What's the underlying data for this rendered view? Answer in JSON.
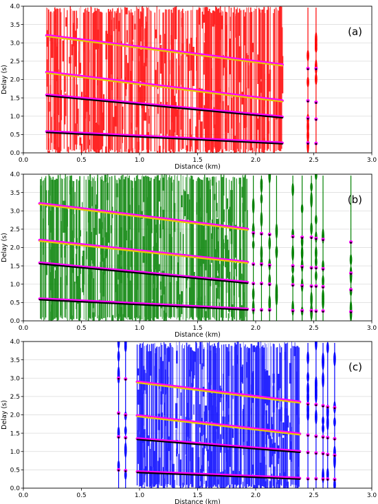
{
  "chart_data": [
    {
      "type": "scatter",
      "panel_label": "(a)",
      "xlabel": "Distance (km)",
      "ylabel": "Delay (s)",
      "xlim": [
        0.0,
        3.0
      ],
      "ylim": [
        0.0,
        4.0
      ],
      "xticks": [
        "0.0",
        "0.5",
        "1.0",
        "1.5",
        "2.0",
        "2.5",
        "3.0"
      ],
      "yticks": [
        "0.0",
        "0.5",
        "1.0",
        "1.5",
        "2.0",
        "2.5",
        "3.0",
        "3.5",
        "4.0"
      ],
      "grid": true,
      "trace_color": "#ff0000",
      "trace_span_km": [
        0.2,
        2.23
      ],
      "isolated_traces_km": [
        2.45,
        2.52
      ],
      "picks": [
        {
          "x": [
            0.2,
            2.23
          ],
          "y": [
            0.58,
            0.27
          ],
          "color": "#000000",
          "highlight": "#ff00ff"
        },
        {
          "x": [
            0.2,
            2.23
          ],
          "y": [
            1.58,
            0.98
          ],
          "color": "#000000",
          "highlight": "#ff00ff"
        },
        {
          "x": [
            0.2,
            2.23
          ],
          "y": [
            2.2,
            1.42
          ],
          "color": "#e8c800",
          "highlight": "#ff00ff"
        },
        {
          "x": [
            0.2,
            2.23
          ],
          "y": [
            3.2,
            2.4
          ],
          "color": "#e8c800",
          "highlight": "#ff00ff"
        }
      ],
      "isolated_picks": [
        {
          "x": 2.45,
          "y": [
            0.27,
            0.95,
            1.42,
            2.3
          ]
        },
        {
          "x": 2.52,
          "y": [
            0.26,
            0.92,
            1.38,
            2.3
          ]
        }
      ]
    },
    {
      "type": "scatter",
      "panel_label": "(b)",
      "xlabel": "Distance (km)",
      "ylabel": "Delay (s)",
      "xlim": [
        0.0,
        3.0
      ],
      "ylim": [
        0.0,
        4.0
      ],
      "xticks": [
        "0.0",
        "0.5",
        "1.0",
        "1.5",
        "2.0",
        "2.5",
        "3.0"
      ],
      "yticks": [
        "0.0",
        "0.5",
        "1.0",
        "1.5",
        "2.0",
        "2.5",
        "3.0",
        "3.5",
        "4.0"
      ],
      "grid": true,
      "trace_color": "#008000",
      "trace_span_km": [
        0.14,
        1.93
      ],
      "isolated_traces_km": [
        1.98,
        2.05,
        2.12,
        2.18,
        2.32,
        2.4,
        2.48,
        2.52,
        2.58,
        2.82
      ],
      "picks": [
        {
          "x": [
            0.14,
            1.93
          ],
          "y": [
            0.6,
            0.32
          ],
          "color": "#000000",
          "highlight": "#ff00ff"
        },
        {
          "x": [
            0.14,
            1.93
          ],
          "y": [
            1.58,
            1.05
          ],
          "color": "#000000",
          "highlight": "#ff00ff"
        },
        {
          "x": [
            0.14,
            1.93
          ],
          "y": [
            2.2,
            1.6
          ],
          "color": "#e8c800",
          "highlight": "#ff00ff"
        },
        {
          "x": [
            0.14,
            1.93
          ],
          "y": [
            3.2,
            2.5
          ],
          "color": "#e8c800",
          "highlight": "#ff00ff"
        }
      ],
      "isolated_picks": [
        {
          "x": 1.98,
          "y": [
            0.3,
            1.02,
            1.55,
            2.4
          ]
        },
        {
          "x": 2.05,
          "y": [
            0.3,
            1.02,
            1.55,
            2.38
          ]
        },
        {
          "x": 2.12,
          "y": [
            0.3,
            1.0,
            1.52,
            2.36
          ]
        },
        {
          "x": 2.32,
          "y": [
            0.28,
            0.98,
            1.5,
            2.3
          ]
        },
        {
          "x": 2.4,
          "y": [
            0.28,
            0.96,
            1.48,
            2.28
          ]
        },
        {
          "x": 2.48,
          "y": [
            0.28,
            0.95,
            1.45,
            2.28
          ]
        },
        {
          "x": 2.52,
          "y": [
            0.27,
            0.95,
            1.45,
            2.25
          ]
        },
        {
          "x": 2.58,
          "y": [
            0.27,
            0.93,
            1.42,
            2.22
          ]
        },
        {
          "x": 2.82,
          "y": [
            0.25,
            0.85,
            1.3,
            2.15
          ]
        }
      ]
    },
    {
      "type": "scatter",
      "panel_label": "(c)",
      "xlabel": "Distance (km)",
      "ylabel": "Delay (s)",
      "xlim": [
        0.0,
        3.0
      ],
      "ylim": [
        0.0,
        4.0
      ],
      "xticks": [
        "0.0",
        "0.5",
        "1.0",
        "1.5",
        "2.0",
        "2.5",
        "3.0"
      ],
      "yticks": [
        "0.0",
        "0.5",
        "1.0",
        "1.5",
        "2.0",
        "2.5",
        "3.0",
        "3.5",
        "4.0"
      ],
      "grid": true,
      "trace_color": "#0000ff",
      "trace_span_km": [
        0.98,
        2.38
      ],
      "isolated_traces_km": [
        0.82,
        0.88,
        2.45,
        2.52,
        2.58,
        2.62,
        2.68
      ],
      "picks": [
        {
          "x": [
            0.98,
            2.38
          ],
          "y": [
            0.45,
            0.27
          ],
          "color": "#000000",
          "highlight": "#ff00ff"
        },
        {
          "x": [
            0.98,
            2.38
          ],
          "y": [
            1.35,
            1.0
          ],
          "color": "#000000",
          "highlight": "#ff00ff"
        },
        {
          "x": [
            0.98,
            2.38
          ],
          "y": [
            1.98,
            1.48
          ],
          "color": "#e8c800",
          "highlight": "#ff00ff"
        },
        {
          "x": [
            0.98,
            2.38
          ],
          "y": [
            2.9,
            2.35
          ],
          "color": "#e8c800",
          "highlight": "#ff00ff"
        }
      ],
      "isolated_picks": [
        {
          "x": 0.82,
          "y": [
            0.5,
            1.4,
            2.05,
            3.0
          ]
        },
        {
          "x": 0.88,
          "y": [
            0.48,
            1.38,
            2.0,
            2.98
          ]
        },
        {
          "x": 2.45,
          "y": [
            0.26,
            0.98,
            1.45,
            2.3
          ]
        },
        {
          "x": 2.52,
          "y": [
            0.26,
            0.96,
            1.42,
            2.28
          ]
        },
        {
          "x": 2.58,
          "y": [
            0.25,
            0.95,
            1.4,
            2.25
          ]
        },
        {
          "x": 2.62,
          "y": [
            0.25,
            0.92,
            1.38,
            2.22
          ]
        },
        {
          "x": 2.68,
          "y": [
            0.24,
            0.9,
            1.35,
            2.2
          ]
        }
      ]
    }
  ]
}
